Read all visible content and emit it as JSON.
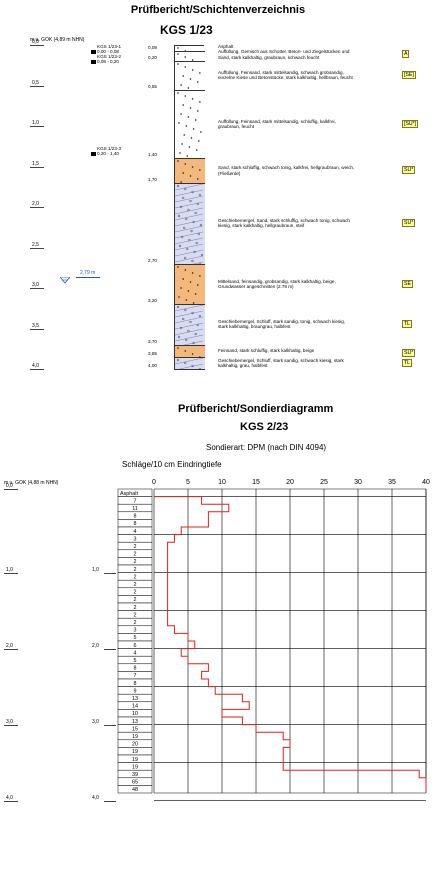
{
  "section1": {
    "title": "Prüfbericht/Schichtenverzeichnis",
    "subtitle": "KGS 1/23",
    "axis_label": "m u. GOK (4,89 m NHN)",
    "depth_ticks": [
      "0,0",
      "0,5",
      "1,0",
      "1,5",
      "2,0",
      "2,5",
      "3,0",
      "3,5",
      "4,0"
    ],
    "groundwater": {
      "depth": 2.79,
      "label": "2,79 m"
    },
    "samples": [
      {
        "name": "KGS 1/23-1",
        "range": "0,00 - 0,08"
      },
      {
        "name": "KGS 1/23-2",
        "range": "0,08 - 0,20"
      },
      {
        "name": "KGS 1/23-3",
        "range": "0,20 - 1,40"
      }
    ],
    "layers": [
      {
        "bottom": 0.08,
        "label": "0,08",
        "desc": [
          "Asphalt"
        ],
        "code": "",
        "fill": "#ffffff"
      },
      {
        "bottom": 0.2,
        "label": "0,20",
        "desc": [
          "Auffüllung, Gemisch aus Schotter, Beton- und Ziegelstücken und",
          "Sand, stark kalkhaltig, graubraun, schwach feucht"
        ],
        "code": "A",
        "fill": "#ffffff"
      },
      {
        "bottom": 0.55,
        "label": "0,55",
        "desc": [
          "Auffüllung, Feinsand, stark mittelsandig, schwach grobsandig,",
          "einzelne Kiese und Betonstücke, stark kalkhaltig, hellbraun, feucht"
        ],
        "code": "[SE]",
        "fill": "#ffffff"
      },
      {
        "bottom": 1.4,
        "label": "1,40",
        "desc": [
          "Auffüllung, Feinsand, stark mittelsandig, schluffig, kalkfrei,",
          "graubraun, feucht"
        ],
        "code": "[SU*]",
        "fill": "#ffffff"
      },
      {
        "bottom": 1.7,
        "label": "1,70",
        "desc": [
          "Sand, stark schluffig, schwach tonig, kalkfrei, hellgraubraun, weich,",
          "(Fließerde)"
        ],
        "code": "SU*",
        "fill": "#f4b77c"
      },
      {
        "bottom": 2.7,
        "label": "2,70",
        "desc": [
          "Geschiebemergel, Sand, stark schluffig, schwach tonig, schwach",
          "kiesig, stark kalkhaltig, hellgraubraun, steif"
        ],
        "code": "SU*",
        "fill": "#d9dcf0"
      },
      {
        "bottom": 3.2,
        "label": "3,20",
        "desc": [
          "Mittelsand, feinsandig, grobsandig, stark kalkhaltig, beige,",
          "Grundwasser angeschnitten (2.79 m)"
        ],
        "code": "SE",
        "fill": "#f4b77c"
      },
      {
        "bottom": 3.7,
        "label": "3,70",
        "desc": [
          "Geschiebemergel, Schluff, stark sandig, tonig, schwach kiesig,",
          "stark kalkhaltig, braungrau, halbfest"
        ],
        "code": "TL",
        "fill": "#d9dcf0"
      },
      {
        "bottom": 3.85,
        "label": "3,85",
        "desc": [
          "Feinsand, stark schluffig, stark kalkhaltig, beige"
        ],
        "code": "SU*",
        "fill": "#f4b77c"
      },
      {
        "bottom": 4.0,
        "label": "4,00",
        "desc": [
          "Geschiebemergel, Schluff, stark sandig, schwach kiesig, stark",
          "kalkhaltig, grau, halbfest"
        ],
        "code": "TL",
        "fill": "#d9dcf0"
      }
    ]
  },
  "section2": {
    "title": "Prüfbericht/Sondierdiagramm",
    "subtitle": "KGS 2/23",
    "sondierart": "Sondierart: DPM (nach DIN 4094)",
    "x_label": "Schläge/10 cm Eindringtiefe",
    "axis_label": "m u. GOK (4,88 m NHN)",
    "left_ticks": [
      "0,0",
      "1,0",
      "2,0",
      "3,0",
      "4,0"
    ],
    "mid_ticks": [
      "1,0",
      "2,0",
      "3,0",
      "4,0"
    ]
  },
  "chart_data": {
    "type": "line",
    "title": "Prüfbericht/Sondierdiagramm KGS 2/23",
    "xlabel": "Schläge/10 cm Eindringtiefe",
    "ylabel": "m u. GOK (4,88 m NHN)",
    "xlim": [
      0,
      40
    ],
    "xticks": [
      0,
      5,
      10,
      15,
      20,
      25,
      30,
      35,
      40
    ],
    "ylim": [
      0,
      4.1
    ],
    "first_cell_label": "Asphalt",
    "blows": [
      7,
      11,
      8,
      8,
      4,
      3,
      2,
      2,
      2,
      2,
      2,
      2,
      2,
      2,
      2,
      2,
      2,
      3,
      5,
      6,
      4,
      5,
      8,
      7,
      8,
      9,
      13,
      14,
      10,
      13,
      15,
      19,
      20,
      19,
      19,
      19,
      39,
      65,
      48
    ]
  }
}
